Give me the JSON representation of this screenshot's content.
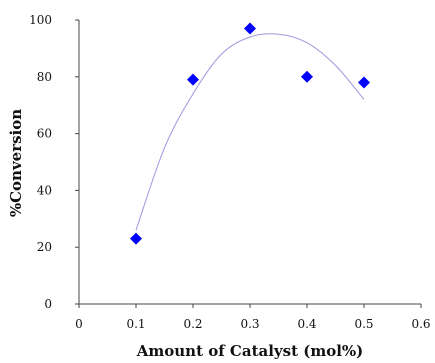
{
  "chart_data": {
    "type": "scatter",
    "title": "",
    "xlabel": "Amount of Catalyst (mol%)",
    "ylabel": "%Conversion",
    "xlim": [
      0,
      0.6
    ],
    "ylim": [
      0,
      100
    ],
    "x_ticks": [
      "0",
      "0.1",
      "0.2",
      "0.3",
      "0.4",
      "0.5",
      "0.6"
    ],
    "y_ticks": [
      "0",
      "20",
      "40",
      "60",
      "80",
      "100"
    ],
    "grid": false,
    "legend": "none",
    "series": [
      {
        "x": [
          0.1,
          0.2,
          0.3,
          0.4,
          0.5
        ],
        "y": [
          23,
          79,
          97,
          80,
          78
        ],
        "marker": "diamond",
        "color": "#0000ff"
      }
    ],
    "trendline": {
      "type": "polynomial",
      "x": [
        0.1,
        0.15,
        0.2,
        0.25,
        0.3,
        0.35,
        0.4,
        0.45,
        0.5
      ],
      "y": [
        26,
        55,
        74,
        88,
        94,
        95,
        92,
        84,
        72
      ],
      "color": "#9999dd"
    }
  }
}
